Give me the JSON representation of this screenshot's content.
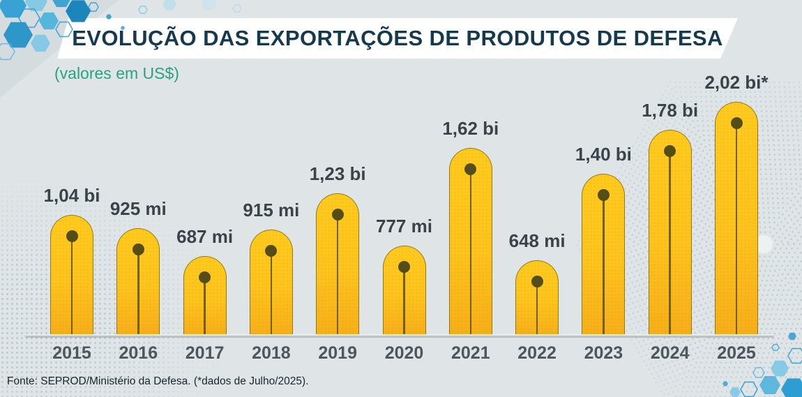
{
  "header": {
    "title": "EVOLUÇÃO DAS EXPORTAÇÕES DE PRODUTOS DE DEFESA",
    "subtitle": "(valores em US$)"
  },
  "footer": {
    "source": "Fonte: SEPROD/Ministério da Defesa. (*dados de Julho/2025)."
  },
  "chart_data": {
    "type": "bar",
    "title": "EVOLUÇÃO DAS EXPORTAÇÕES DE PRODUTOS DE DEFESA",
    "subtitle": "(valores em US$)",
    "categories": [
      "2015",
      "2016",
      "2017",
      "2018",
      "2019",
      "2020",
      "2021",
      "2022",
      "2023",
      "2024",
      "2025"
    ],
    "values_usd_millions": [
      1040,
      925,
      687,
      915,
      1230,
      777,
      1620,
      648,
      1400,
      1780,
      2020
    ],
    "value_labels": [
      "1,04 bi",
      "925 mi",
      "687 mi",
      "915 mi",
      "1,23 bi",
      "777 mi",
      "1,62 bi",
      "648 mi",
      "1,40 bi",
      "1,78 bi",
      "2,02 bi*"
    ],
    "unit": "US$",
    "ylim": [
      0,
      2100
    ],
    "grid": false,
    "legend": false,
    "footnote": "*dados de Julho/2025",
    "source": "Fonte: SEPROD/Ministério da Defesa."
  },
  "colors": {
    "background": "#dfe5e7",
    "banner": "#ffffff",
    "title_text": "#163a4d",
    "subtitle_text": "#2aa183",
    "bar_fill_top": "#ffcb1e",
    "bar_fill_bottom": "#f6ae19",
    "bar_outline": "#8d7a16",
    "pin_marker": "#554d17",
    "value_label": "#3b4249",
    "year_label": "#4d555d",
    "baseline": "#a9b1b4",
    "halftone_dot": "#c2cdd3",
    "hex_blue_dark": "#1b86bb",
    "hex_blue_mid": "#2e9ed2",
    "hex_blue_light": "#7cc6e4",
    "footer_text": "#17272f"
  }
}
